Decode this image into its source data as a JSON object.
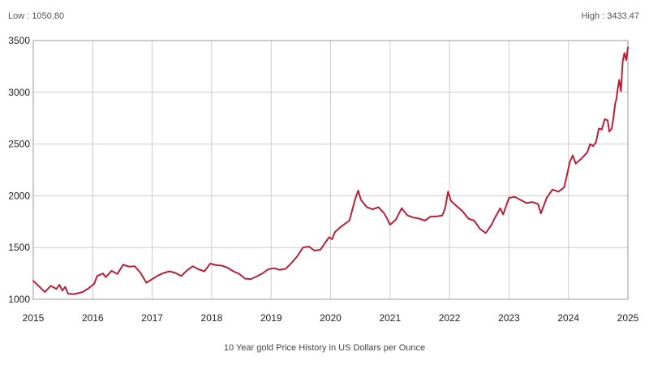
{
  "header": {
    "low": "Low : 1050.80",
    "high": "High : 3433.47"
  },
  "caption": "10 Year gold Price History in US Dollars per Ounce",
  "colors": {
    "line": "#b5213a",
    "grid": "#cccccc",
    "axis": "#999999"
  },
  "chart_data": {
    "type": "line",
    "title": "",
    "xlabel": "10 Year gold Price History in US Dollars per Ounce",
    "ylabel": "",
    "xlim": [
      2015,
      2025
    ],
    "ylim": [
      1000,
      3500
    ],
    "x_ticks": [
      "2015",
      "2016",
      "2017",
      "2018",
      "2019",
      "2020",
      "2021",
      "2022",
      "2023",
      "2024",
      "2025"
    ],
    "y_ticks": [
      "1000",
      "1500",
      "2000",
      "2500",
      "3000",
      "3500"
    ],
    "grid": true,
    "series": [
      {
        "values": [
          [
            2015.0,
            1178
          ],
          [
            2015.1,
            1125
          ],
          [
            2015.2,
            1070
          ],
          [
            2015.3,
            1130
          ],
          [
            2015.4,
            1100
          ],
          [
            2015.45,
            1140
          ],
          [
            2015.5,
            1085
          ],
          [
            2015.55,
            1120
          ],
          [
            2015.6,
            1055
          ],
          [
            2015.7,
            1050
          ],
          [
            2015.85,
            1070
          ],
          [
            2015.95,
            1105
          ],
          [
            2016.05,
            1150
          ],
          [
            2016.1,
            1225
          ],
          [
            2016.2,
            1250
          ],
          [
            2016.25,
            1215
          ],
          [
            2016.35,
            1275
          ],
          [
            2016.45,
            1245
          ],
          [
            2016.55,
            1335
          ],
          [
            2016.65,
            1315
          ],
          [
            2016.75,
            1320
          ],
          [
            2016.85,
            1255
          ],
          [
            2016.95,
            1160
          ],
          [
            2017.05,
            1195
          ],
          [
            2017.15,
            1230
          ],
          [
            2017.25,
            1255
          ],
          [
            2017.35,
            1270
          ],
          [
            2017.45,
            1255
          ],
          [
            2017.55,
            1225
          ],
          [
            2017.65,
            1280
          ],
          [
            2017.75,
            1320
          ],
          [
            2017.85,
            1290
          ],
          [
            2017.95,
            1270
          ],
          [
            2018.05,
            1345
          ],
          [
            2018.15,
            1330
          ],
          [
            2018.25,
            1325
          ],
          [
            2018.35,
            1305
          ],
          [
            2018.45,
            1270
          ],
          [
            2018.55,
            1245
          ],
          [
            2018.65,
            1200
          ],
          [
            2018.75,
            1195
          ],
          [
            2018.85,
            1220
          ],
          [
            2018.95,
            1250
          ],
          [
            2019.05,
            1290
          ],
          [
            2019.15,
            1300
          ],
          [
            2019.25,
            1285
          ],
          [
            2019.35,
            1295
          ],
          [
            2019.45,
            1350
          ],
          [
            2019.55,
            1415
          ],
          [
            2019.65,
            1500
          ],
          [
            2019.75,
            1510
          ],
          [
            2019.85,
            1470
          ],
          [
            2019.95,
            1480
          ],
          [
            2020.05,
            1560
          ],
          [
            2020.1,
            1600
          ],
          [
            2020.15,
            1580
          ],
          [
            2020.2,
            1650
          ],
          [
            2020.3,
            1700
          ],
          [
            2020.45,
            1760
          ],
          [
            2020.55,
            1970
          ],
          [
            2020.6,
            2050
          ],
          [
            2020.65,
            1960
          ],
          [
            2020.75,
            1890
          ],
          [
            2020.85,
            1870
          ],
          [
            2020.95,
            1890
          ],
          [
            2021.05,
            1830
          ],
          [
            2021.1,
            1780
          ],
          [
            2021.15,
            1720
          ],
          [
            2021.25,
            1770
          ],
          [
            2021.35,
            1880
          ],
          [
            2021.45,
            1810
          ],
          [
            2021.55,
            1790
          ],
          [
            2021.65,
            1780
          ],
          [
            2021.75,
            1760
          ],
          [
            2021.85,
            1800
          ],
          [
            2021.95,
            1800
          ],
          [
            2022.05,
            1810
          ],
          [
            2022.1,
            1880
          ],
          [
            2022.15,
            2040
          ],
          [
            2022.2,
            1950
          ],
          [
            2022.3,
            1900
          ],
          [
            2022.4,
            1850
          ],
          [
            2022.5,
            1780
          ],
          [
            2022.6,
            1760
          ],
          [
            2022.7,
            1680
          ],
          [
            2022.8,
            1640
          ],
          [
            2022.9,
            1720
          ],
          [
            2022.95,
            1780
          ],
          [
            2023.05,
            1880
          ],
          [
            2023.1,
            1820
          ],
          [
            2023.2,
            1980
          ],
          [
            2023.3,
            1990
          ],
          [
            2023.4,
            1960
          ],
          [
            2023.5,
            1930
          ],
          [
            2023.6,
            1940
          ],
          [
            2023.7,
            1920
          ],
          [
            2023.75,
            1830
          ],
          [
            2023.85,
            1980
          ],
          [
            2023.95,
            2060
          ],
          [
            2024.05,
            2040
          ],
          [
            2024.15,
            2080
          ],
          [
            2024.2,
            2200
          ],
          [
            2024.25,
            2330
          ],
          [
            2024.3,
            2390
          ],
          [
            2024.35,
            2310
          ],
          [
            2024.45,
            2360
          ],
          [
            2024.55,
            2420
          ],
          [
            2024.6,
            2500
          ],
          [
            2024.65,
            2480
          ],
          [
            2024.7,
            2520
          ],
          [
            2024.75,
            2650
          ],
          [
            2024.8,
            2640
          ],
          [
            2024.85,
            2740
          ],
          [
            2024.9,
            2730
          ],
          [
            2024.93,
            2620
          ],
          [
            2024.97,
            2650
          ],
          [
            2025.0,
            2750
          ],
          [
            2025.03,
            2890
          ],
          [
            2025.05,
            2930
          ],
          [
            2025.08,
            3050
          ],
          [
            2025.1,
            3120
          ],
          [
            2025.13,
            3010
          ],
          [
            2025.16,
            3300
          ],
          [
            2025.19,
            3380
          ],
          [
            2025.22,
            3310
          ],
          [
            2025.25,
            3433
          ]
        ]
      }
    ]
  }
}
